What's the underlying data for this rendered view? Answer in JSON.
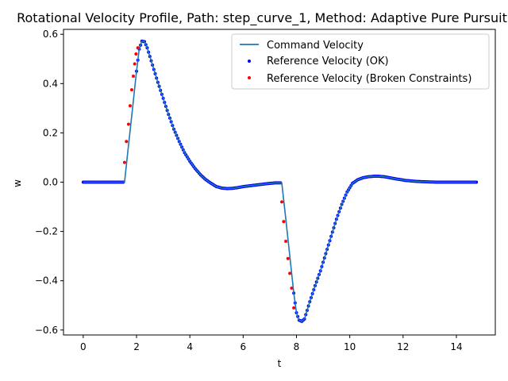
{
  "chart_data": {
    "type": "line",
    "title": "Rotational Velocity Profile, Path: step_curve_1, Method: Adaptive Pure Pursuit",
    "xlabel": "t",
    "ylabel": "w",
    "xlim": [
      -0.74,
      15.46
    ],
    "ylim": [
      -0.62,
      0.62
    ],
    "xticks": [
      0,
      2,
      4,
      6,
      8,
      10,
      12,
      14
    ],
    "yticks": [
      -0.6,
      -0.4,
      -0.2,
      0.0,
      0.2,
      0.4,
      0.6
    ],
    "xtick_labels": [
      "0",
      "2",
      "4",
      "6",
      "8",
      "10",
      "12",
      "14"
    ],
    "ytick_labels": [
      "−0.6",
      "−0.4",
      "−0.2",
      "0.0",
      "0.2",
      "0.4",
      "0.6"
    ],
    "legend_position": "top-right",
    "series": [
      {
        "name": "Command Velocity",
        "style": "line",
        "color": "#1f77b4",
        "x": [
          0.0,
          1.55,
          1.7,
          1.85,
          2.0,
          2.1,
          2.2,
          2.3,
          2.4,
          2.6,
          2.8,
          3.0,
          3.2,
          3.4,
          3.6,
          3.8,
          4.0,
          4.2,
          4.4,
          4.6,
          4.8,
          5.0,
          5.2,
          5.4,
          5.6,
          5.8,
          6.0,
          6.3,
          6.6,
          6.9,
          7.2,
          7.45,
          7.6,
          7.75,
          7.9,
          8.0,
          8.1,
          8.2,
          8.3,
          8.4,
          8.5,
          8.7,
          8.9,
          9.1,
          9.3,
          9.5,
          9.7,
          9.9,
          10.1,
          10.3,
          10.5,
          10.7,
          10.9,
          11.1,
          11.3,
          11.5,
          11.8,
          12.1,
          12.4,
          12.7,
          13.0,
          13.3,
          13.6,
          14.0,
          14.4,
          14.75
        ],
        "y": [
          0.0,
          0.0,
          0.15,
          0.3,
          0.45,
          0.54,
          0.572,
          0.57,
          0.545,
          0.475,
          0.405,
          0.34,
          0.275,
          0.215,
          0.165,
          0.12,
          0.085,
          0.055,
          0.03,
          0.01,
          -0.005,
          -0.018,
          -0.024,
          -0.026,
          -0.025,
          -0.022,
          -0.018,
          -0.014,
          -0.01,
          -0.006,
          -0.003,
          -0.003,
          -0.15,
          -0.3,
          -0.45,
          -0.53,
          -0.56,
          -0.565,
          -0.555,
          -0.52,
          -0.485,
          -0.42,
          -0.36,
          -0.29,
          -0.22,
          -0.15,
          -0.09,
          -0.04,
          -0.005,
          0.01,
          0.018,
          0.022,
          0.024,
          0.024,
          0.022,
          0.018,
          0.012,
          0.007,
          0.004,
          0.002,
          0.001,
          0.0,
          0.0,
          0.0,
          0.0,
          0.0
        ]
      },
      {
        "name": "Reference Velocity (OK)",
        "style": "dots",
        "color": "#0000ff"
      },
      {
        "name": "Reference Velocity (Broken Constraints)",
        "style": "dots",
        "color": "#ff0000",
        "x": [
          1.55,
          1.62,
          1.7,
          1.76,
          1.82,
          1.88,
          1.93,
          1.98,
          2.05,
          7.45,
          7.52,
          7.6,
          7.68,
          7.75,
          7.82,
          7.9
        ],
        "y": [
          0.08,
          0.165,
          0.235,
          0.31,
          0.375,
          0.43,
          0.48,
          0.52,
          0.545,
          -0.08,
          -0.16,
          -0.24,
          -0.31,
          -0.37,
          -0.43,
          -0.51
        ]
      }
    ]
  }
}
